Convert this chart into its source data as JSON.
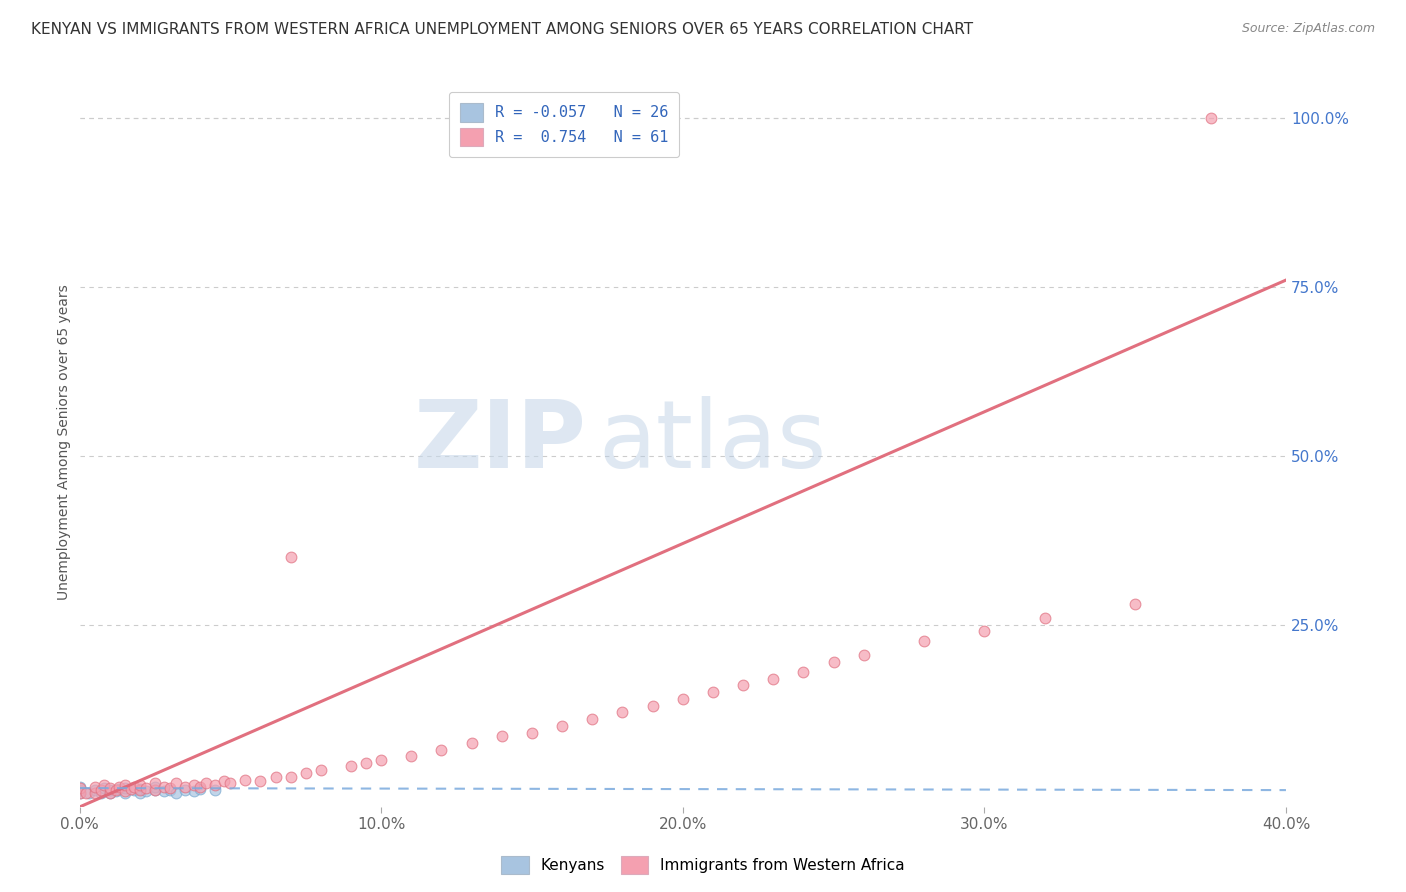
{
  "title": "KENYAN VS IMMIGRANTS FROM WESTERN AFRICA UNEMPLOYMENT AMONG SENIORS OVER 65 YEARS CORRELATION CHART",
  "source": "Source: ZipAtlas.com",
  "ylabel": "Unemployment Among Seniors over 65 years",
  "xlim": [
    0.0,
    0.4
  ],
  "ylim": [
    -0.02,
    1.06
  ],
  "xtick_labels": [
    "0.0%",
    "10.0%",
    "20.0%",
    "30.0%",
    "40.0%"
  ],
  "xtick_vals": [
    0.0,
    0.1,
    0.2,
    0.3,
    0.4
  ],
  "ytick_vals": [
    0.25,
    0.5,
    0.75,
    1.0
  ],
  "ytick_labels": [
    "25.0%",
    "50.0%",
    "75.0%",
    "100.0%"
  ],
  "kenyan_color": "#a8c4e0",
  "kenyan_edge_color": "#7aaad0",
  "wa_color": "#f4a0b0",
  "wa_edge_color": "#e07080",
  "kenyan_line_color": "#7aaadd",
  "wa_line_color": "#e06878",
  "legend_kenyan_label": "R = -0.057   N = 26",
  "legend_wa_label": "R =  0.754   N = 61",
  "watermark_zip": "ZIP",
  "watermark_atlas": "atlas",
  "background_color": "#ffffff",
  "grid_color": "#cccccc",
  "wa_line_x0": 0.0,
  "wa_line_y0": -0.02,
  "wa_line_x1": 0.4,
  "wa_line_y1": 0.76,
  "k_line_x0": 0.0,
  "k_line_y0": 0.008,
  "k_line_x1": 0.4,
  "k_line_y1": 0.005,
  "kenyan_x": [
    0.0,
    0.0,
    0.0,
    0.003,
    0.005,
    0.007,
    0.008,
    0.01,
    0.01,
    0.012,
    0.013,
    0.015,
    0.015,
    0.018,
    0.02,
    0.02,
    0.022,
    0.025,
    0.025,
    0.028,
    0.03,
    0.032,
    0.035,
    0.038,
    0.04,
    0.045
  ],
  "kenyan_y": [
    0.0,
    0.005,
    0.01,
    0.0,
    0.005,
    0.0,
    0.008,
    0.0,
    0.005,
    0.003,
    0.007,
    0.0,
    0.008,
    0.005,
    0.0,
    0.007,
    0.003,
    0.005,
    0.01,
    0.003,
    0.005,
    0.0,
    0.005,
    0.003,
    0.007,
    0.005
  ],
  "wa_x": [
    0.0,
    0.0,
    0.002,
    0.005,
    0.005,
    0.007,
    0.008,
    0.01,
    0.01,
    0.012,
    0.013,
    0.015,
    0.015,
    0.017,
    0.018,
    0.02,
    0.02,
    0.022,
    0.025,
    0.025,
    0.028,
    0.03,
    0.032,
    0.035,
    0.038,
    0.04,
    0.042,
    0.045,
    0.048,
    0.05,
    0.055,
    0.06,
    0.065,
    0.07,
    0.075,
    0.08,
    0.09,
    0.095,
    0.1,
    0.11,
    0.12,
    0.13,
    0.14,
    0.15,
    0.16,
    0.17,
    0.18,
    0.19,
    0.2,
    0.21,
    0.22,
    0.23,
    0.24,
    0.25,
    0.26,
    0.28,
    0.3,
    0.32,
    0.07,
    0.375,
    0.35
  ],
  "wa_y": [
    0.0,
    0.008,
    0.0,
    0.0,
    0.01,
    0.005,
    0.012,
    0.0,
    0.008,
    0.005,
    0.01,
    0.003,
    0.012,
    0.007,
    0.01,
    0.005,
    0.012,
    0.008,
    0.005,
    0.015,
    0.01,
    0.008,
    0.015,
    0.01,
    0.012,
    0.01,
    0.015,
    0.012,
    0.018,
    0.015,
    0.02,
    0.018,
    0.025,
    0.025,
    0.03,
    0.035,
    0.04,
    0.045,
    0.05,
    0.055,
    0.065,
    0.075,
    0.085,
    0.09,
    0.1,
    0.11,
    0.12,
    0.13,
    0.14,
    0.15,
    0.16,
    0.17,
    0.18,
    0.195,
    0.205,
    0.225,
    0.24,
    0.26,
    0.35,
    1.0,
    0.28
  ]
}
